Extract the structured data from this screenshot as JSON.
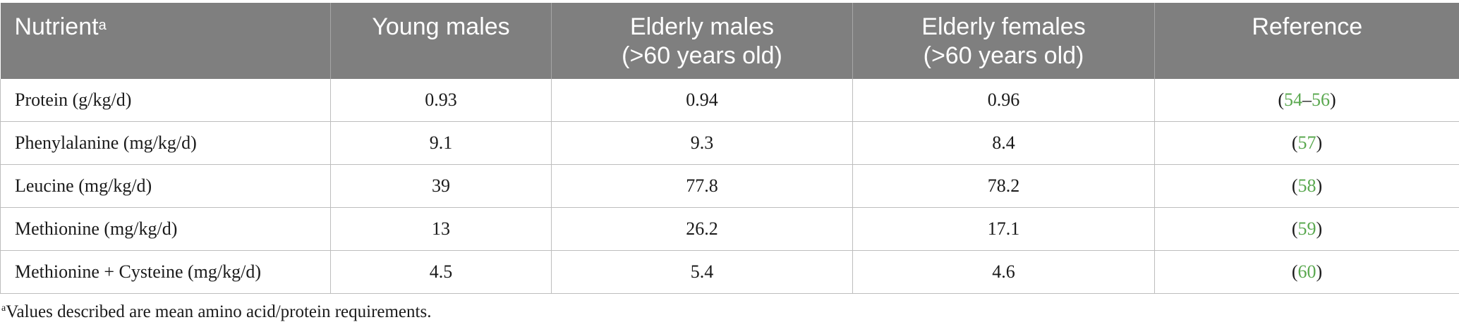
{
  "table": {
    "headers": [
      {
        "line1": "Nutrient",
        "sup": "a",
        "line2": ""
      },
      {
        "line1": "Young males",
        "line2": ""
      },
      {
        "line1": "Elderly males",
        "line2": "(>60 years old)"
      },
      {
        "line1": "Elderly females",
        "line2": "(>60 years old)"
      },
      {
        "line1": "Reference",
        "line2": ""
      }
    ],
    "rows": [
      {
        "nutrient": "Protein (g/kg/d)",
        "young_males": "0.93",
        "elderly_males": "0.94",
        "elderly_females": "0.96",
        "ref_open": "(",
        "ref_a": "54",
        "ref_sep": "–",
        "ref_b": "56",
        "ref_close": ")"
      },
      {
        "nutrient": "Phenylalanine (mg/kg/d)",
        "young_males": "9.1",
        "elderly_males": "9.3",
        "elderly_females": "8.4",
        "ref_open": "(",
        "ref_a": "57",
        "ref_close": ")"
      },
      {
        "nutrient": "Leucine (mg/kg/d)",
        "young_males": "39",
        "elderly_males": "77.8",
        "elderly_females": "78.2",
        "ref_open": "(",
        "ref_a": "58",
        "ref_close": ")"
      },
      {
        "nutrient": "Methionine (mg/kg/d)",
        "young_males": "13",
        "elderly_males": "26.2",
        "elderly_females": "17.1",
        "ref_open": "(",
        "ref_a": "59",
        "ref_close": ")"
      },
      {
        "nutrient": "Methionine + Cysteine (mg/kg/d)",
        "young_males": "4.5",
        "elderly_males": "5.4",
        "elderly_females": "4.6",
        "ref_open": "(",
        "ref_a": "60",
        "ref_close": ")"
      }
    ]
  },
  "footnote": {
    "marker": "a",
    "text": "Values described are mean amino acid/protein requirements."
  },
  "colors": {
    "header_bg": "#7f7f7f",
    "header_text": "#ffffff",
    "reference_link": "#5aa84f"
  }
}
